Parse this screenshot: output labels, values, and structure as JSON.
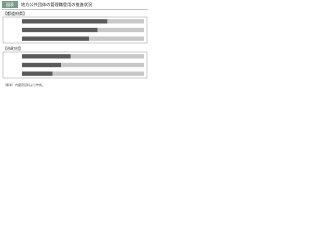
{
  "figure": {
    "label": "図表",
    "title": "地方公共団体の管理職登用の推進状況",
    "note": "（備考）内閣府資料より作成。"
  },
  "chart_data": [
    {
      "type": "bar",
      "title": "【都道府県】",
      "orientation": "horizontal",
      "stacked": true,
      "categories": [
        null,
        null,
        null
      ],
      "xlim": [
        0,
        100
      ],
      "series": [
        {
          "color": "#5a5a5a",
          "values": [
            70,
            62,
            55
          ]
        },
        {
          "color": "#c8c8c8",
          "values": [
            30,
            38,
            45
          ]
        }
      ]
    },
    {
      "type": "bar",
      "title": "【市町村】",
      "orientation": "horizontal",
      "stacked": true,
      "categories": [
        null,
        null,
        null
      ],
      "xlim": [
        0,
        100
      ],
      "series": [
        {
          "color": "#5a5a5a",
          "values": [
            40,
            32,
            25
          ]
        },
        {
          "color": "#c8c8c8",
          "values": [
            60,
            68,
            75
          ]
        }
      ]
    }
  ]
}
